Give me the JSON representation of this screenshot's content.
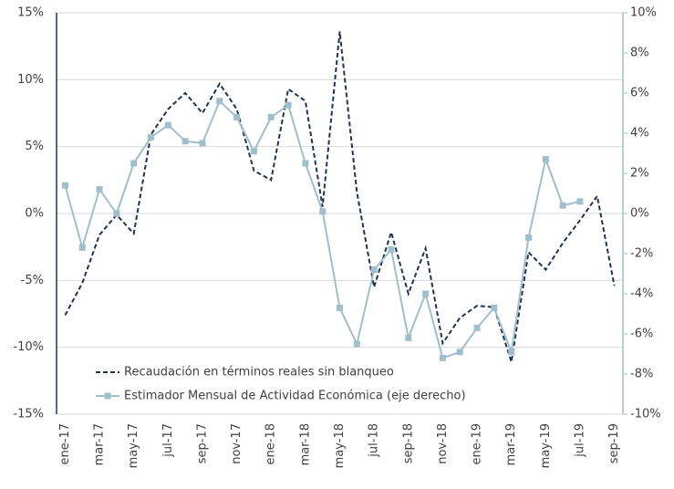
{
  "chart_data": {
    "type": "line",
    "categories": [
      "ene-17",
      null,
      "mar-17",
      null,
      "may-17",
      null,
      "jul-17",
      null,
      "sep-17",
      null,
      "nov-17",
      null,
      "ene-18",
      null,
      "mar-18",
      null,
      "may-18",
      null,
      "jul-18",
      null,
      "sep-18",
      null,
      "nov-18",
      null,
      "ene-19",
      null,
      "mar-19",
      null,
      "may-19",
      null,
      "jul-19",
      null,
      "sep-19"
    ],
    "series": [
      {
        "name": "Recaudación en términos reales sin blanqueo",
        "color": "#1f3352",
        "dash": true,
        "marker": false,
        "values": [
          -7.6,
          -5.2,
          -1.6,
          -0.1,
          -1.5,
          5.9,
          7.8,
          9.0,
          7.5,
          9.7,
          7.8,
          3.2,
          2.5,
          9.3,
          8.4,
          0.5,
          13.6,
          1.6,
          -5.5,
          -1.4,
          -6.0,
          -2.6,
          -9.7,
          -7.8,
          -6.9,
          -7.0,
          -11.1,
          -2.9,
          -4.2,
          -2.2,
          -0.5,
          1.3,
          -5.4
        ]
      },
      {
        "name": "Estimador Mensual de Actividad Económica (eje derecho)",
        "color": "#9fbfcc",
        "dash": false,
        "marker": true,
        "axis": "y2",
        "values": [
          1.4,
          -1.7,
          1.2,
          0.0,
          2.5,
          3.8,
          4.4,
          3.6,
          3.5,
          5.6,
          4.8,
          3.1,
          4.8,
          5.4,
          2.5,
          0.1,
          -4.7,
          -6.5,
          -2.8,
          -1.8,
          -6.2,
          -4.0,
          -7.2,
          -6.9,
          -5.7,
          -4.7,
          -6.9,
          -1.2,
          2.7,
          0.4,
          0.6,
          null,
          null
        ]
      }
    ],
    "ylim": [
      -15,
      15
    ],
    "yticks": [
      {
        "value": -15,
        "label": "-15%"
      },
      {
        "value": -10,
        "label": "-10%"
      },
      {
        "value": -5,
        "label": "-5%"
      },
      {
        "value": 0,
        "label": "0%"
      },
      {
        "value": 5,
        "label": "5%"
      },
      {
        "value": 10,
        "label": "10%"
      },
      {
        "value": 15,
        "label": "15%"
      }
    ],
    "y2lim": [
      -10,
      10
    ],
    "y2ticks": [
      {
        "value": -10,
        "label": "-10%"
      },
      {
        "value": -8,
        "label": "-8%"
      },
      {
        "value": -6,
        "label": "-6%"
      },
      {
        "value": -4,
        "label": "-4%"
      },
      {
        "value": -2,
        "label": "-2%"
      },
      {
        "value": 0,
        "label": "0%"
      },
      {
        "value": 2,
        "label": "2%"
      },
      {
        "value": 4,
        "label": "4%"
      },
      {
        "value": 6,
        "label": "6%"
      },
      {
        "value": 8,
        "label": "8%"
      },
      {
        "value": 10,
        "label": "10%"
      }
    ],
    "grid": true,
    "legend": "lower-left"
  }
}
